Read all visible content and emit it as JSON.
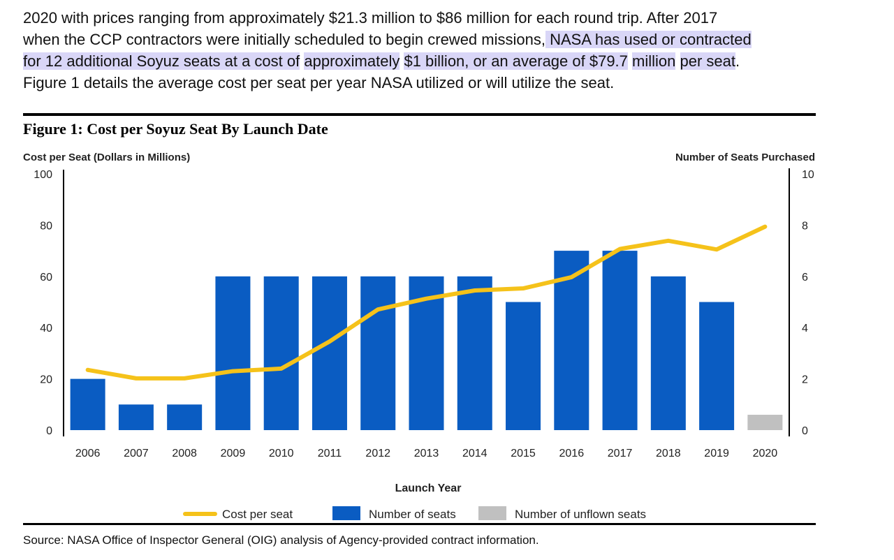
{
  "paragraph": {
    "line1": "2020 with prices ranging from approximately $21.3 million to $86 million for each round trip.  After 2017",
    "line2a": "when the CCP contractors were initially scheduled to begin crewed missions,",
    "line2b": " NASA has used or contracted",
    "line3a": "for 12 additional Soyuz seats at a cost of",
    "line3b": "approximately",
    "line3c": "$1 billion, or an average of $79.7",
    "line3d": "million",
    "line3e": "per seat",
    "line3f": ".",
    "line4": "Figure 1 details the average cost per seat per year NASA utilized or will utilize the seat.",
    "highlight_color": "#d9d6f7"
  },
  "figure": {
    "title": "Figure 1:  Cost per Soyuz Seat By Launch Date",
    "source": "Source:  NASA Office of Inspector General (OIG) analysis of Agency-provided contract information."
  },
  "chart_data": {
    "type": "bar",
    "categories": [
      "2006",
      "2007",
      "2008",
      "2009",
      "2010",
      "2011",
      "2012",
      "2013",
      "2014",
      "2015",
      "2016",
      "2017",
      "2018",
      "2019",
      "2020"
    ],
    "xlabel": "Launch Year",
    "ylabel": "Cost per Seat (Dollars in Millions)",
    "y2label": "Number of Seats Purchased",
    "ylim": [
      0,
      100
    ],
    "y2lim": [
      0,
      10
    ],
    "yticks": [
      "0",
      "20",
      "40",
      "60",
      "80",
      "100"
    ],
    "y2ticks": [
      "0",
      "2",
      "4",
      "6",
      "8",
      "10"
    ],
    "series": [
      {
        "name": "Number of seats",
        "type": "bar",
        "axis": "right",
        "color": "#0a5cc2",
        "values": [
          2,
          1,
          1,
          6,
          6,
          6,
          6,
          6,
          6,
          5,
          7,
          7,
          6,
          5,
          0
        ]
      },
      {
        "name": "Number of unflown seats",
        "type": "bar",
        "axis": "right",
        "color": "#c0c0c0",
        "values": [
          0,
          0,
          0,
          0,
          0,
          0,
          0,
          0,
          0,
          0,
          0,
          0,
          0,
          0,
          0.6
        ]
      },
      {
        "name": "Cost per seat",
        "type": "line",
        "axis": "left",
        "color": "#f5c21a",
        "values": [
          23.5,
          20.2,
          20.2,
          23.0,
          24.0,
          34.6,
          47.1,
          51.3,
          54.5,
          55.3,
          59.7,
          70.7,
          73.9,
          70.5,
          79.4
        ]
      }
    ],
    "legend": "bottom",
    "grid": false
  }
}
